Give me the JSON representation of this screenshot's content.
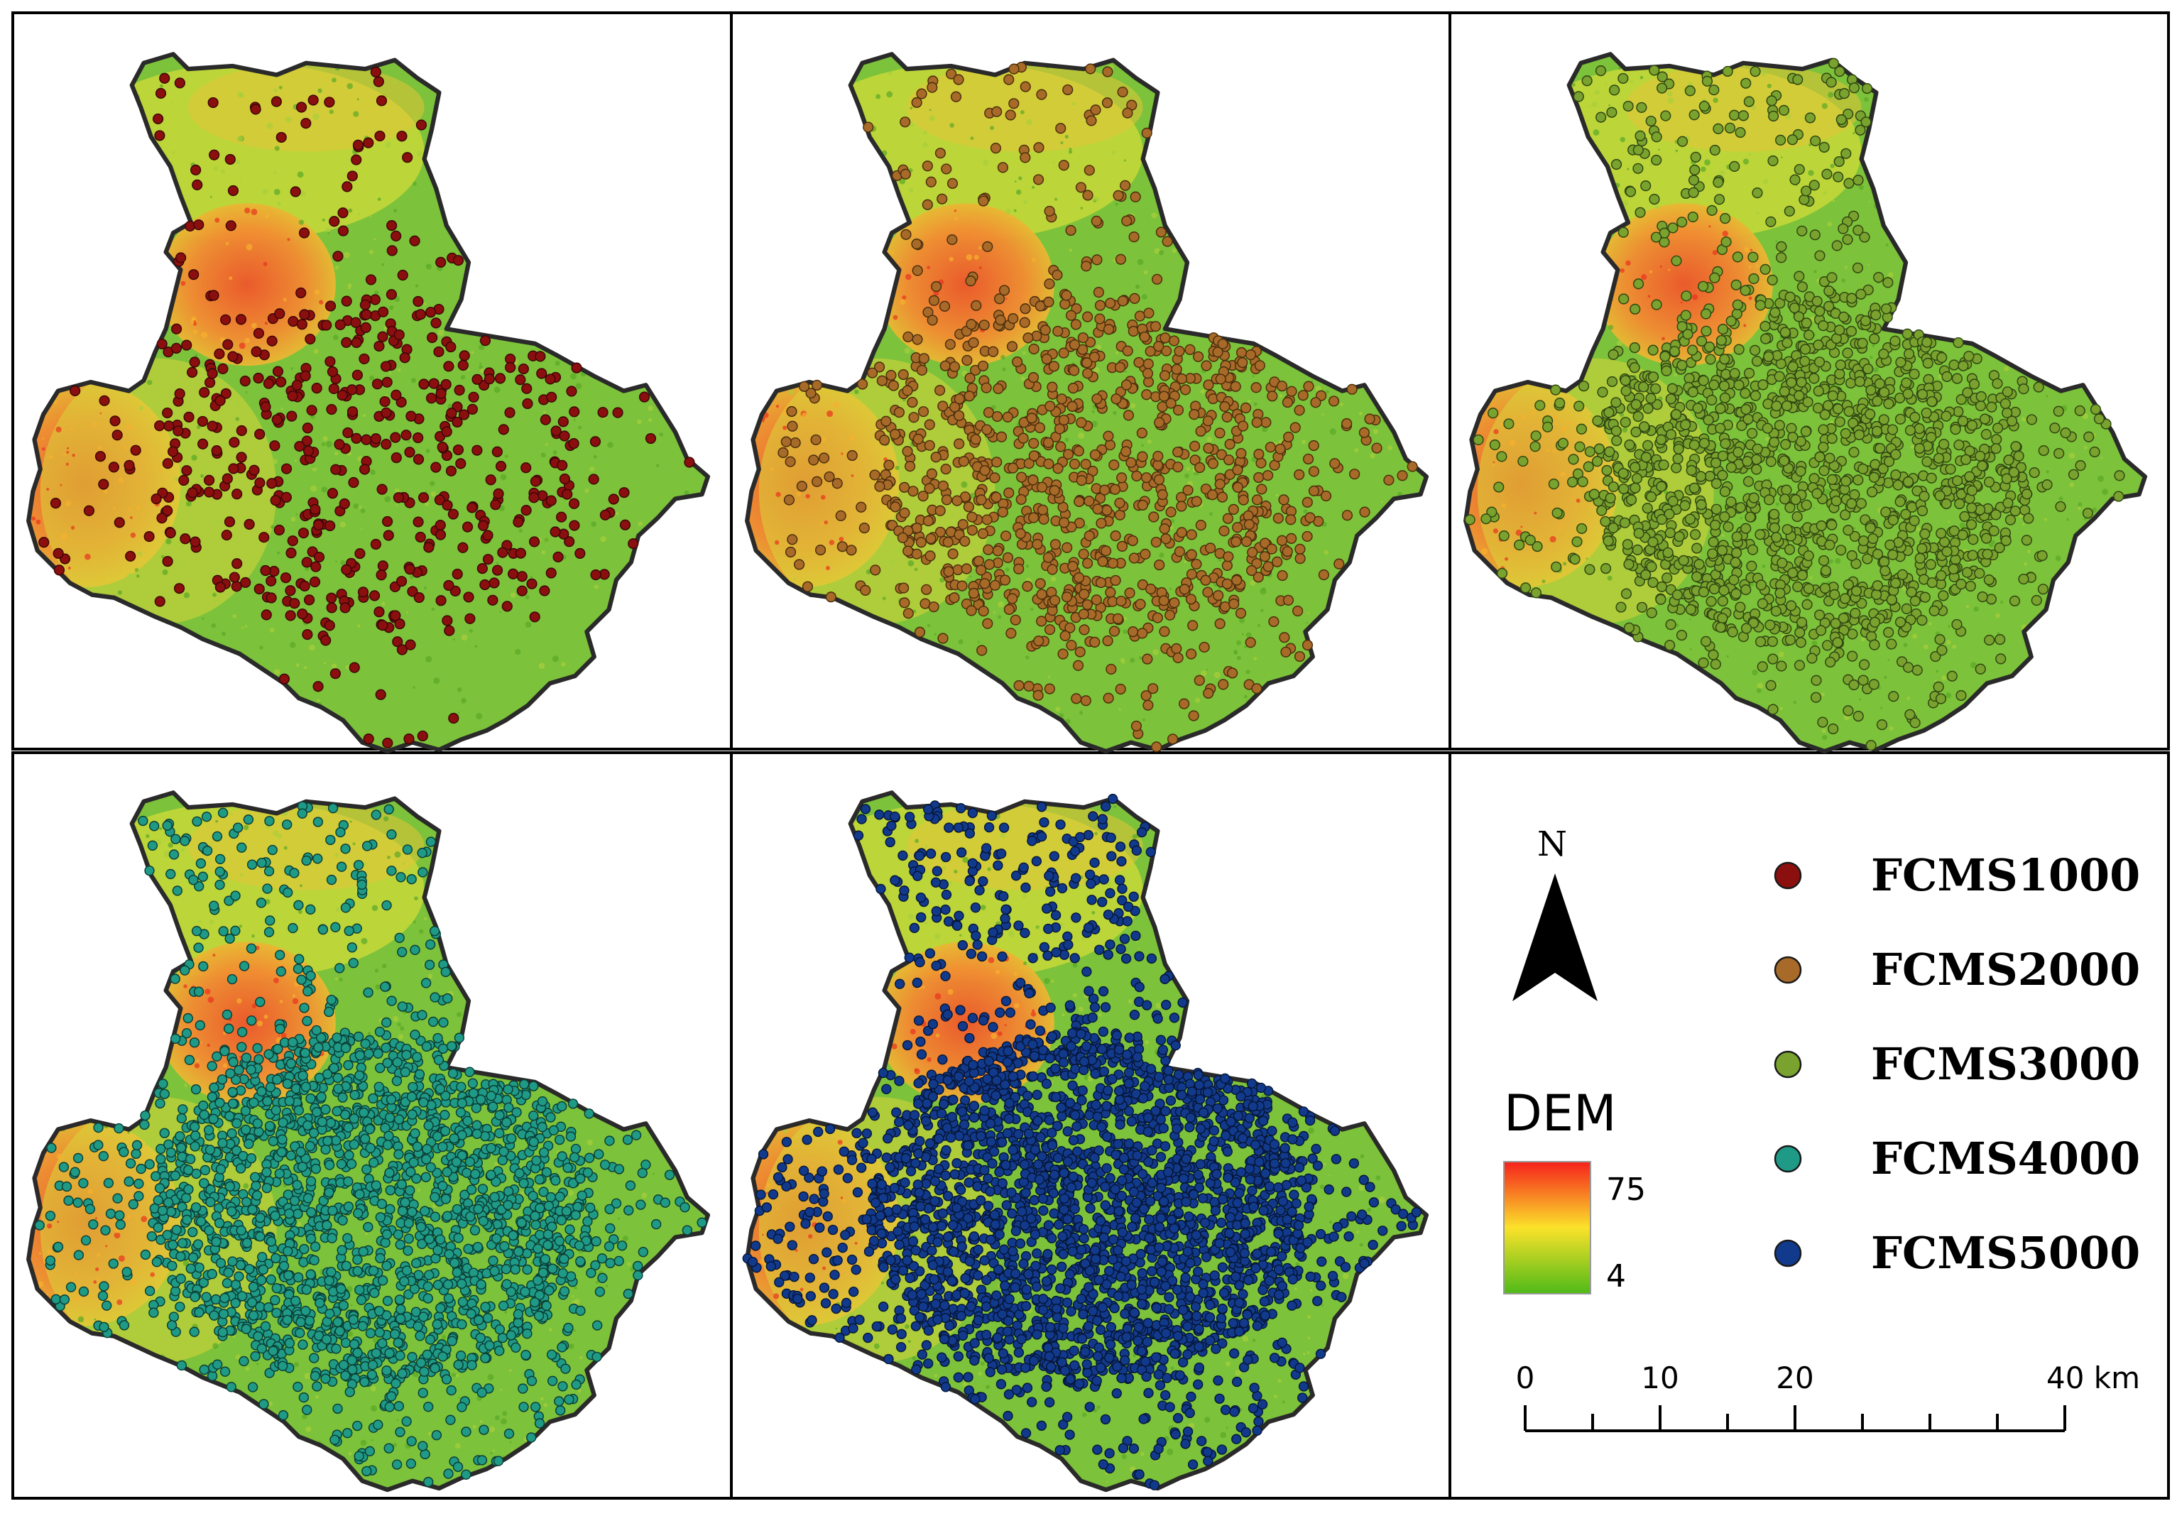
{
  "panels": [
    {
      "id": "fcms1000",
      "sample_count": 1000,
      "point_color": "#8b0f0f",
      "point_stroke": "#3a0606"
    },
    {
      "id": "fcms2000",
      "sample_count": 2000,
      "point_color": "#a86a28",
      "point_stroke": "#4a2e0d"
    },
    {
      "id": "fcms3000",
      "sample_count": 3000,
      "point_color": "#7aa22e",
      "point_stroke": "#2f4512"
    },
    {
      "id": "fcms4000",
      "sample_count": 4000,
      "point_color": "#1f9a86",
      "point_stroke": "#0b3d35"
    },
    {
      "id": "fcms5000",
      "sample_count": 5000,
      "point_color": "#123a8c",
      "point_stroke": "#061638"
    }
  ],
  "legend": {
    "items": [
      {
        "label": "FCMS1000",
        "color": "#8b0f0f"
      },
      {
        "label": "FCMS2000",
        "color": "#a86a28"
      },
      {
        "label": "FCMS3000",
        "color": "#7aa22e"
      },
      {
        "label": "FCMS4000",
        "color": "#1f9a86"
      },
      {
        "label": "FCMS5000",
        "color": "#123a8c"
      }
    ]
  },
  "north_arrow": {
    "label": "N",
    "icon": "north-arrow-icon"
  },
  "dem": {
    "title": "DEM",
    "max_label": "75",
    "min_label": "4",
    "colors": [
      "#f5211c",
      "#fbe22a",
      "#4fba18"
    ]
  },
  "scale_bar": {
    "ticks": [
      "0",
      "10",
      "20",
      "40 km"
    ],
    "tick_values_km": [
      0,
      10,
      20,
      40
    ]
  }
}
